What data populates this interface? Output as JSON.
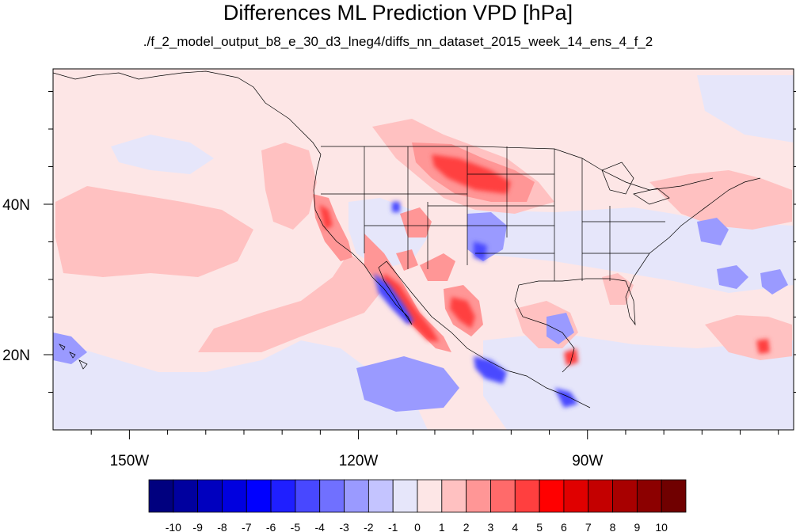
{
  "title": "Differences ML Prediction VPD [hPa]",
  "subtitle": "./f_2_model_output_b8_e_30_d3_lneg4/diffs_nn_dataset_2015_week_14_ens_4_f_2",
  "map": {
    "projection": "cylindrical equidistant",
    "lon_range": [
      -160,
      -63
    ],
    "lat_range": [
      10,
      58
    ],
    "background_color": "#fde6e6",
    "lat_tick_labels": [
      {
        "lat": 40,
        "label": "40N"
      },
      {
        "lat": 20,
        "label": "20N"
      }
    ],
    "lon_tick_labels": [
      {
        "lon": -150,
        "label": "150W"
      },
      {
        "lon": -120,
        "label": "120W"
      },
      {
        "lon": -90,
        "label": "90W"
      }
    ],
    "minor_lat_ticks": [
      15,
      25,
      30,
      35,
      45,
      50,
      55
    ],
    "minor_lon_ticks": [
      -155,
      -145,
      -140,
      -135,
      -130,
      -125,
      -115,
      -110,
      -105,
      -100,
      -95,
      -85,
      -80,
      -75,
      -70,
      -65
    ]
  },
  "colorbar": {
    "levels": [
      -10,
      -9,
      -8,
      -7,
      -6,
      -5,
      -4,
      -3,
      -2,
      -1,
      0,
      1,
      2,
      3,
      4,
      5,
      6,
      7,
      8,
      9,
      10
    ],
    "labels": [
      "-10",
      "-9",
      "-8",
      "-7",
      "-6",
      "-5",
      "-4",
      "-3",
      "-2",
      "-1",
      "0",
      "1",
      "2",
      "3",
      "4",
      "5",
      "6",
      "7",
      "8",
      "9",
      "10"
    ],
    "colors": [
      "#00007f",
      "#00009f",
      "#0000bf",
      "#0000df",
      "#0000ff",
      "#1f1fff",
      "#4848ff",
      "#7070ff",
      "#9a9aff",
      "#c4c4ff",
      "#e6e6fa",
      "#fde6e6",
      "#ffc1c1",
      "#ff9696",
      "#ff6a6a",
      "#ff3f3f",
      "#ff0000",
      "#e00000",
      "#c40000",
      "#a80000",
      "#8c0000",
      "#700000"
    ]
  }
}
